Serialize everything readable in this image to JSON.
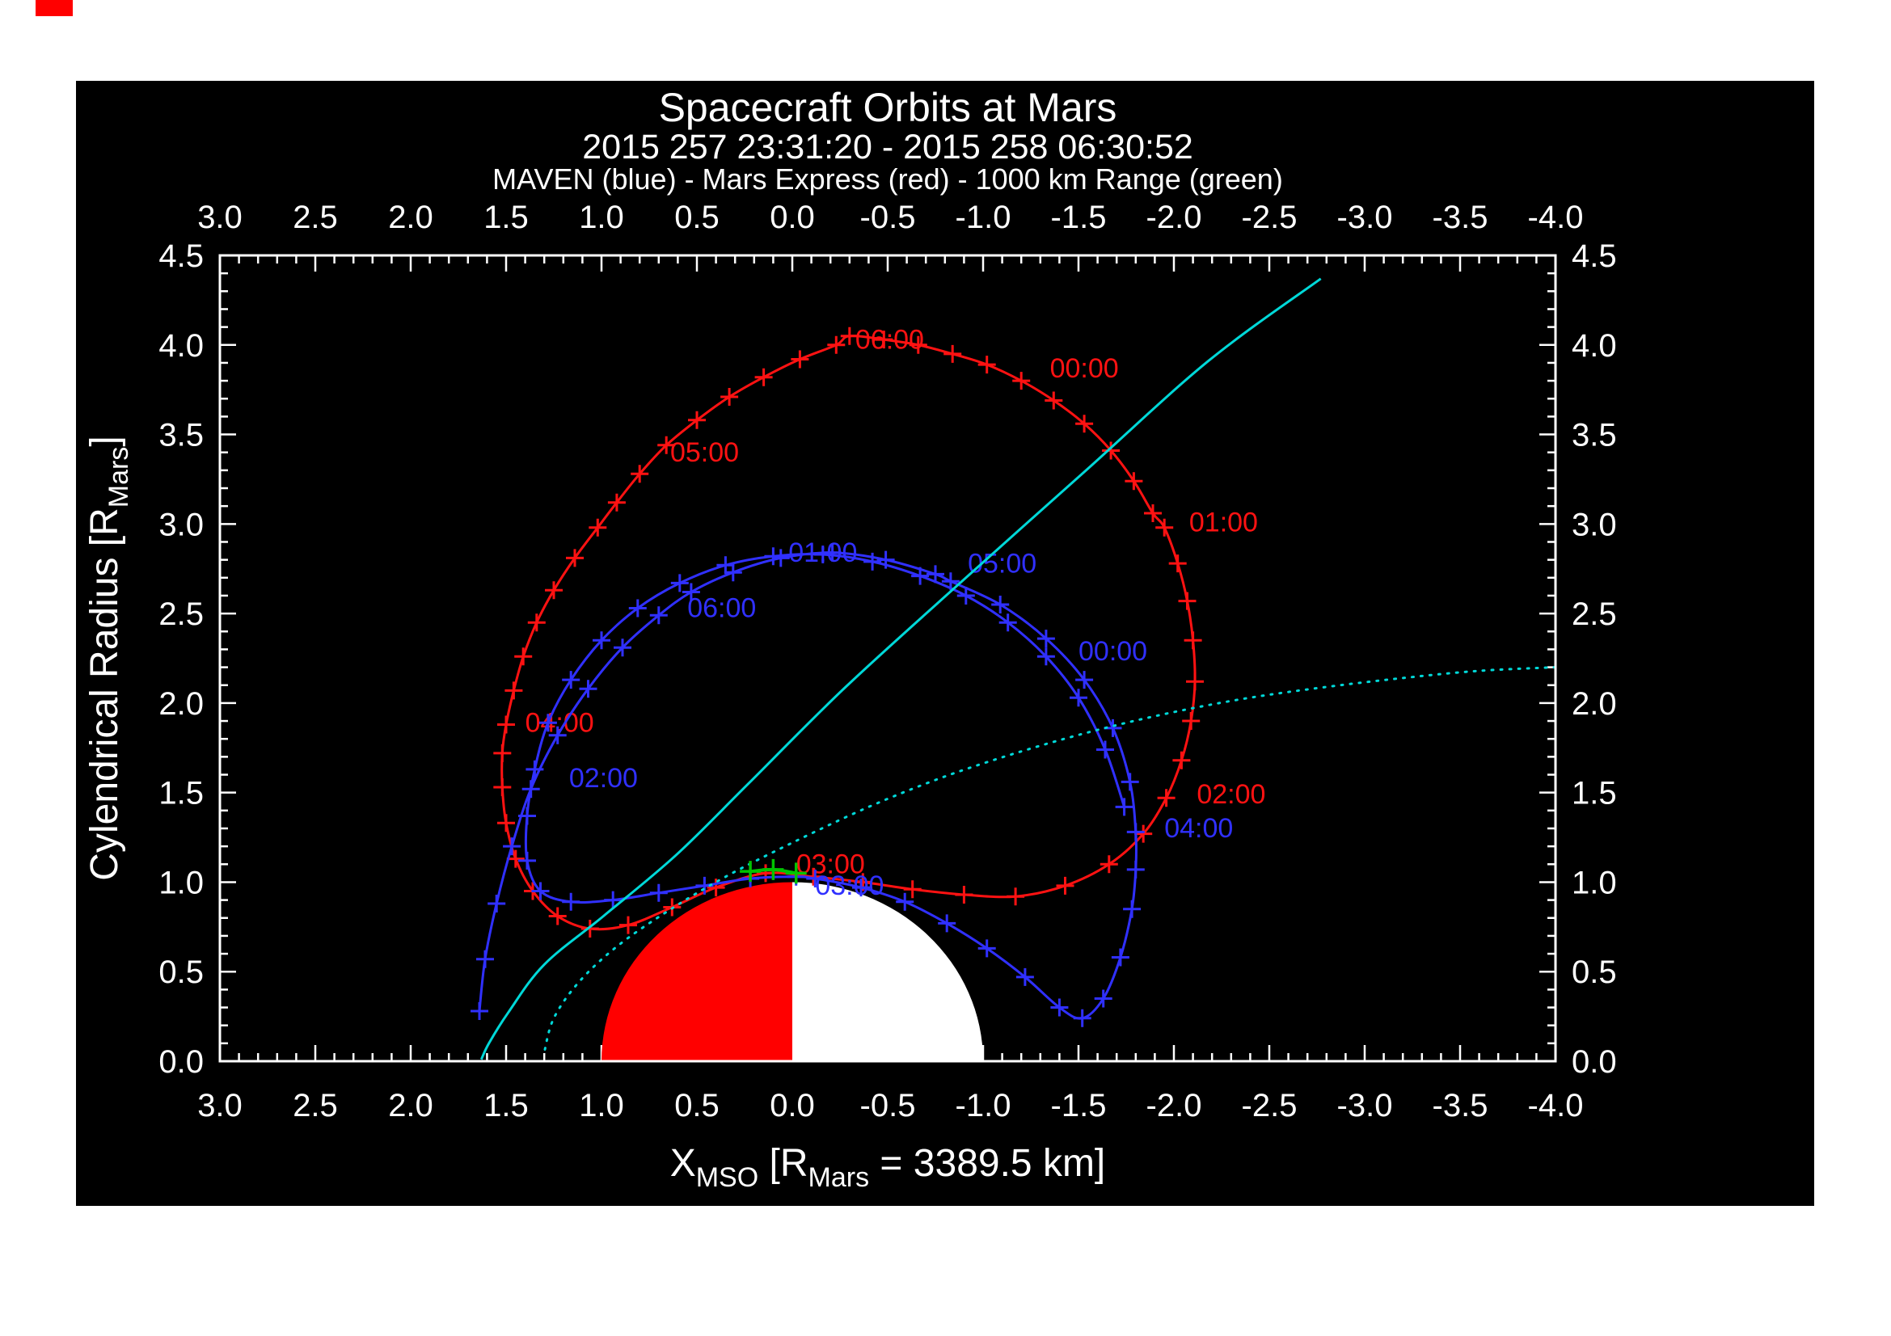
{
  "artifact": {
    "color": "#ff0000"
  },
  "chart_data": {
    "type": "line",
    "title": "Spacecraft Orbits at Mars",
    "subtitle": "2015 257 23:31:20 - 2015 258 06:30:52",
    "legend_line": "MAVEN (blue) - Mars Express (red) - 1000 km Range (green)",
    "background": "#000000",
    "axis_color": "#ffffff",
    "xlim": [
      3.0,
      -4.0
    ],
    "ylim": [
      0.0,
      4.5
    ],
    "x_tick_labels": [
      "3.0",
      "2.5",
      "2.0",
      "1.5",
      "1.0",
      "0.5",
      "0.0",
      "-0.5",
      "-1.0",
      "-1.5",
      "-2.0",
      "-2.5",
      "-3.0",
      "-3.5",
      "-4.0"
    ],
    "x_tick_values": [
      3.0,
      2.5,
      2.0,
      1.5,
      1.0,
      0.5,
      0.0,
      -0.5,
      -1.0,
      -1.5,
      -2.0,
      -2.5,
      -3.0,
      -3.5,
      -4.0
    ],
    "y_tick_labels": [
      "0.0",
      "0.5",
      "1.0",
      "1.5",
      "2.0",
      "2.5",
      "3.0",
      "3.5",
      "4.0",
      "4.5"
    ],
    "y_tick_values": [
      0.0,
      0.5,
      1.0,
      1.5,
      2.0,
      2.5,
      3.0,
      3.5,
      4.0,
      4.5
    ],
    "minor_tick_step": 0.1,
    "xlabel_parts": [
      {
        "t": "X"
      },
      {
        "t": "MSO",
        "sub": true
      },
      {
        "t": " [R"
      },
      {
        "t": "Mars",
        "sub": true
      },
      {
        "t": " = 3389.5 km]"
      }
    ],
    "ylabel_parts": [
      {
        "t": "Cylendrical Radius [R"
      },
      {
        "t": "Mars",
        "sub": true
      },
      {
        "t": "]"
      }
    ],
    "mars": {
      "radius_rm": 1.0,
      "dayside_color": "#ff0000",
      "nightside_color": "#ffffff"
    },
    "series": [
      {
        "name": "Mars Express orbit",
        "color": "#ff1212",
        "line": "solid",
        "marker": "plus",
        "closed": true,
        "points": [
          [
            -0.3,
            4.05
          ],
          [
            -0.48,
            4.03
          ],
          [
            -0.66,
            4.0
          ],
          [
            -0.84,
            3.95
          ],
          [
            -1.02,
            3.89
          ],
          [
            -1.2,
            3.8
          ],
          [
            -1.37,
            3.69
          ],
          [
            -1.53,
            3.56
          ],
          [
            -1.67,
            3.41
          ],
          [
            -1.79,
            3.24
          ],
          [
            -1.89,
            3.06
          ],
          [
            -1.95,
            2.98
          ],
          [
            -2.02,
            2.78
          ],
          [
            -2.07,
            2.57
          ],
          [
            -2.1,
            2.35
          ],
          [
            -2.11,
            2.12
          ],
          [
            -2.09,
            1.9
          ],
          [
            -2.04,
            1.68
          ],
          [
            -1.96,
            1.47
          ],
          [
            -1.84,
            1.27
          ],
          [
            -1.66,
            1.1
          ],
          [
            -1.43,
            0.98
          ],
          [
            -1.17,
            0.92
          ],
          [
            -0.9,
            0.93
          ],
          [
            -0.63,
            0.96
          ],
          [
            -0.37,
            1.0
          ],
          [
            -0.11,
            1.03
          ],
          [
            0.14,
            1.05
          ],
          [
            0.4,
            0.97
          ],
          [
            0.63,
            0.86
          ],
          [
            0.86,
            0.76
          ],
          [
            1.06,
            0.74
          ],
          [
            1.23,
            0.81
          ],
          [
            1.36,
            0.95
          ],
          [
            1.45,
            1.13
          ],
          [
            1.5,
            1.33
          ],
          [
            1.52,
            1.53
          ],
          [
            1.52,
            1.72
          ],
          [
            1.5,
            1.88
          ],
          [
            1.46,
            2.07
          ],
          [
            1.41,
            2.26
          ],
          [
            1.34,
            2.45
          ],
          [
            1.25,
            2.63
          ],
          [
            1.14,
            2.81
          ],
          [
            1.02,
            2.98
          ],
          [
            0.92,
            3.12
          ],
          [
            0.8,
            3.28
          ],
          [
            0.66,
            3.44
          ],
          [
            0.5,
            3.58
          ],
          [
            0.33,
            3.71
          ],
          [
            0.15,
            3.82
          ],
          [
            -0.04,
            3.92
          ],
          [
            -0.23,
            4.0
          ]
        ],
        "time_labels": [
          {
            "t": "00:00",
            "x": -1.35,
            "y": 3.86
          },
          {
            "t": "01:00",
            "x": -2.08,
            "y": 3.0
          },
          {
            "t": "02:00",
            "x": -2.12,
            "y": 1.48
          },
          {
            "t": "03:00",
            "x": -0.02,
            "y": 1.09
          },
          {
            "t": "04:00",
            "x": 1.4,
            "y": 1.88
          },
          {
            "t": "05:00",
            "x": 0.64,
            "y": 3.39
          },
          {
            "t": "06:00",
            "x": -0.33,
            "y": 4.02
          }
        ]
      },
      {
        "name": "MAVEN orbit",
        "color": "#3030ff",
        "line": "solid",
        "marker": "plus",
        "closed": false,
        "points": [
          [
            -1.74,
            1.42
          ],
          [
            -1.64,
            1.74
          ],
          [
            -1.5,
            2.03
          ],
          [
            -1.33,
            2.26
          ],
          [
            -1.13,
            2.45
          ],
          [
            -0.91,
            2.6
          ],
          [
            -0.67,
            2.71
          ],
          [
            -0.42,
            2.79
          ],
          [
            -0.16,
            2.83
          ],
          [
            0.1,
            2.82
          ],
          [
            0.35,
            2.77
          ],
          [
            0.59,
            2.67
          ],
          [
            0.81,
            2.53
          ],
          [
            1.0,
            2.35
          ],
          [
            1.16,
            2.13
          ],
          [
            1.28,
            1.89
          ],
          [
            1.35,
            1.63
          ],
          [
            1.39,
            1.37
          ],
          [
            1.39,
            1.12
          ],
          [
            1.32,
            0.95
          ],
          [
            1.16,
            0.89
          ],
          [
            0.94,
            0.9
          ],
          [
            0.7,
            0.94
          ],
          [
            0.46,
            0.98
          ],
          [
            0.22,
            1.02
          ],
          [
            -0.02,
            1.03
          ],
          [
            -0.12,
            1.02
          ],
          [
            -0.36,
            0.97
          ],
          [
            -0.59,
            0.89
          ],
          [
            -0.81,
            0.77
          ],
          [
            -1.02,
            0.63
          ],
          [
            -1.22,
            0.47
          ],
          [
            -1.4,
            0.3
          ],
          [
            -1.52,
            0.24
          ],
          [
            -1.63,
            0.35
          ],
          [
            -1.72,
            0.58
          ],
          [
            -1.78,
            0.85
          ],
          [
            -1.8,
            1.07
          ],
          [
            -1.8,
            1.28
          ],
          [
            -1.77,
            1.56
          ],
          [
            -1.68,
            1.86
          ],
          [
            -1.53,
            2.13
          ],
          [
            -1.33,
            2.36
          ],
          [
            -1.09,
            2.55
          ],
          [
            -0.83,
            2.68
          ],
          [
            -0.75,
            2.72
          ],
          [
            -0.49,
            2.8
          ],
          [
            -0.21,
            2.84
          ],
          [
            0.06,
            2.81
          ],
          [
            0.31,
            2.73
          ],
          [
            0.53,
            2.62
          ],
          [
            0.7,
            2.49
          ],
          [
            0.89,
            2.31
          ],
          [
            1.07,
            2.08
          ],
          [
            1.23,
            1.82
          ],
          [
            1.37,
            1.52
          ],
          [
            1.47,
            1.2
          ],
          [
            1.55,
            0.88
          ],
          [
            1.61,
            0.57
          ],
          [
            1.64,
            0.28
          ]
        ],
        "time_labels": [
          {
            "t": "00:00",
            "x": -1.5,
            "y": 2.28
          },
          {
            "t": "01:00",
            "x": 0.02,
            "y": 2.83
          },
          {
            "t": "02:00",
            "x": 1.17,
            "y": 1.57
          },
          {
            "t": "03:00",
            "x": -0.12,
            "y": 0.97
          },
          {
            "t": "04:00",
            "x": -1.95,
            "y": 1.29
          },
          {
            "t": "05:00",
            "x": -0.92,
            "y": 2.77
          },
          {
            "t": "06:00",
            "x": 0.55,
            "y": 2.52
          }
        ]
      },
      {
        "name": "cyan solid boundary curve",
        "color": "#00d8d8",
        "line": "solid",
        "marker": null,
        "closed": false,
        "points": [
          [
            -2.77,
            4.37
          ],
          [
            -2.18,
            3.91
          ],
          [
            -1.54,
            3.3
          ],
          [
            -0.91,
            2.7
          ],
          [
            -0.28,
            2.09
          ],
          [
            0.23,
            1.55
          ],
          [
            0.61,
            1.15
          ],
          [
            0.99,
            0.81
          ],
          [
            1.3,
            0.54
          ],
          [
            1.49,
            0.27
          ],
          [
            1.59,
            0.1
          ],
          [
            1.63,
            0.01
          ]
        ],
        "time_labels": []
      },
      {
        "name": "cyan dotted boundary curve",
        "color": "#00d8d8",
        "line": "dotted",
        "marker": null,
        "closed": false,
        "points": [
          [
            -4.0,
            2.2
          ],
          [
            -3.6,
            2.18
          ],
          [
            -3.2,
            2.14
          ],
          [
            -2.8,
            2.09
          ],
          [
            -2.4,
            2.03
          ],
          [
            -2.0,
            1.95
          ],
          [
            -1.6,
            1.85
          ],
          [
            -1.2,
            1.73
          ],
          [
            -0.8,
            1.59
          ],
          [
            -0.4,
            1.42
          ],
          [
            0.0,
            1.22
          ],
          [
            0.35,
            1.03
          ],
          [
            0.65,
            0.84
          ],
          [
            0.92,
            0.64
          ],
          [
            1.12,
            0.44
          ],
          [
            1.25,
            0.24
          ],
          [
            1.3,
            0.05
          ]
        ],
        "time_labels": []
      }
    ],
    "range_marker": {
      "color": "#00c400",
      "points": [
        [
          0.22,
          1.06
        ],
        [
          0.1,
          1.07
        ],
        [
          -0.02,
          1.05
        ]
      ]
    }
  }
}
